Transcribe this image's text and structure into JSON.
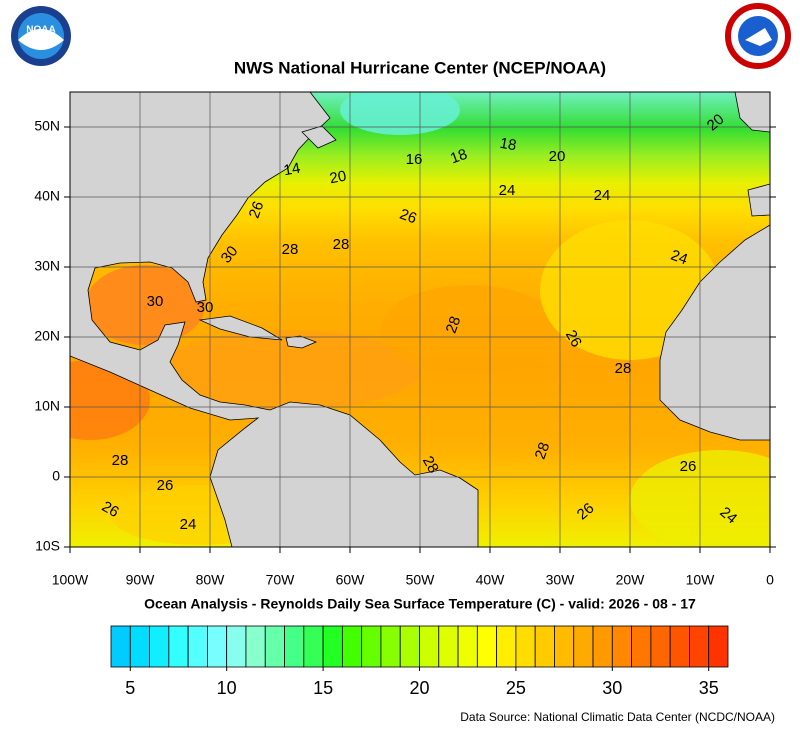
{
  "header": {
    "title": "NWS National Hurricane Center (NCEP/NOAA)",
    "logo_text": "NOAA"
  },
  "map": {
    "xlim": [
      -100,
      0
    ],
    "ylim": [
      -10,
      55
    ],
    "xticks": [
      {
        "value": -100,
        "label": "100W"
      },
      {
        "value": -90,
        "label": "90W"
      },
      {
        "value": -80,
        "label": "80W"
      },
      {
        "value": -70,
        "label": "70W"
      },
      {
        "value": -60,
        "label": "60W"
      },
      {
        "value": -50,
        "label": "50W"
      },
      {
        "value": -40,
        "label": "40W"
      },
      {
        "value": -30,
        "label": "30W"
      },
      {
        "value": -20,
        "label": "20W"
      },
      {
        "value": -10,
        "label": "10W"
      },
      0
    ],
    "yticks": [
      {
        "value": -10,
        "label": "10S"
      },
      0,
      {
        "value": 10,
        "label": "10N"
      },
      {
        "value": 20,
        "label": "20N"
      },
      {
        "value": 30,
        "label": "30N"
      },
      {
        "value": 40,
        "label": "40N"
      },
      {
        "value": 50,
        "label": "50N"
      }
    ],
    "contour_labels": [
      14,
      20,
      16,
      18,
      18,
      20,
      20,
      26,
      26,
      24,
      24,
      30,
      28,
      28,
      24,
      30,
      30,
      28,
      26,
      28,
      28,
      26,
      28,
      28,
      26,
      26,
      24,
      26,
      24
    ]
  },
  "caption": "Ocean Analysis - Reynolds Daily Sea Surface Temperature (C) - valid: 2026 - 08 - 17",
  "colorbar": {
    "range": [
      4,
      36
    ],
    "ticks": [
      5,
      10,
      15,
      20,
      25,
      30,
      35
    ],
    "colors": [
      "#00ccff",
      "#00ddff",
      "#11eeff",
      "#33ffff",
      "#55ffff",
      "#77ffff",
      "#88ffee",
      "#88ffcc",
      "#66ffaa",
      "#44ff88",
      "#33ff55",
      "#22ff22",
      "#44ff00",
      "#66ff00",
      "#88ff00",
      "#aaff00",
      "#ccff00",
      "#ddff00",
      "#eeff00",
      "#ffff00",
      "#ffee00",
      "#ffdd00",
      "#ffcc00",
      "#ffbb00",
      "#ffaa00",
      "#ff9900",
      "#ff8800",
      "#ff7700",
      "#ff6600",
      "#ff5500",
      "#ff4400",
      "#ff3300"
    ]
  },
  "source": "Data Source: National Climatic Data Center (NCDC/NOAA)"
}
